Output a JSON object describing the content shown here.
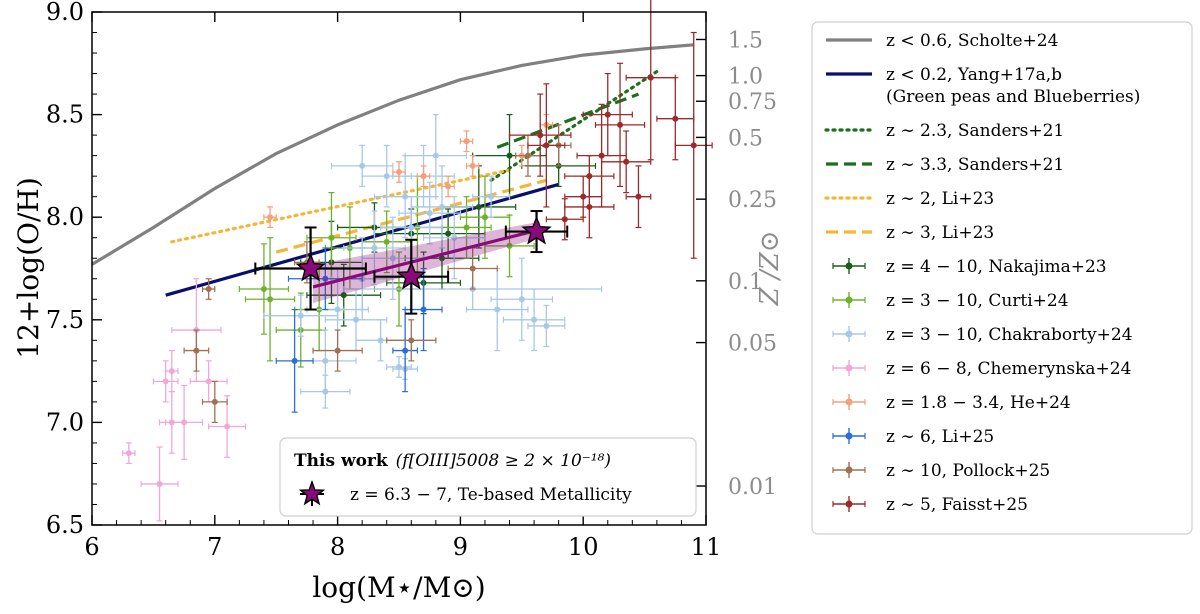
{
  "chart_data": {
    "type": "scatter",
    "xlabel": "log(M⋆/M⊙)",
    "ylabel": "12+log(O/H)",
    "y2label": "Z /Z⊙",
    "xlim": [
      6,
      11
    ],
    "ylim": [
      6.5,
      9.0
    ],
    "x_ticks": [
      "6",
      "7",
      "8",
      "9",
      "10",
      "11"
    ],
    "y_ticks": [
      "6.5",
      "7.0",
      "7.5",
      "8.0",
      "8.5",
      "9.0"
    ],
    "z_ticks": [
      {
        "label": "1.5",
        "value": 1.5
      },
      {
        "label": "1.0",
        "value": 1.0
      },
      {
        "label": "0.75",
        "value": 0.75
      },
      {
        "label": "0.5",
        "value": 0.5
      },
      {
        "label": "0.25",
        "value": 0.25
      },
      {
        "label": "0.1",
        "value": 0.1
      },
      {
        "label": "0.05",
        "value": 0.05
      },
      {
        "label": "0.01",
        "value": 0.01
      }
    ],
    "solar_oh": 8.69,
    "relations": [
      {
        "name": "z < 0.6, Scholte+24",
        "color": "#808080",
        "dash": "",
        "x": [
          6.0,
          6.5,
          7.0,
          7.5,
          8.0,
          8.5,
          9.0,
          9.5,
          10.0,
          10.5,
          10.9
        ],
        "y": [
          7.77,
          7.95,
          8.14,
          8.31,
          8.45,
          8.57,
          8.67,
          8.74,
          8.79,
          8.82,
          8.84
        ]
      },
      {
        "name": "z < 0.2, Yang+17a,b",
        "name2": "(Green peas and Blueberries)",
        "color": "#0a0f6e",
        "dash": "",
        "x": [
          6.6,
          9.8
        ],
        "y": [
          7.62,
          8.16
        ]
      },
      {
        "name": "z ∼ 2.3, Sanders+21",
        "color": "#1f6e1f",
        "dash": "dot",
        "x": [
          9.25,
          10.6
        ],
        "y": [
          8.18,
          8.71
        ]
      },
      {
        "name": "z ∼ 3.3, Sanders+21",
        "color": "#1f6e1f",
        "dash": "dash",
        "x": [
          9.3,
          10.45
        ],
        "y": [
          8.34,
          8.6
        ]
      },
      {
        "name": "z ∼ 2, Li+23",
        "color": "#f5b638",
        "dash": "dot",
        "x": [
          6.65,
          9.4
        ],
        "y": [
          7.88,
          8.23
        ]
      },
      {
        "name": "z ∼ 3, Li+23",
        "color": "#f5b638",
        "dash": "dash",
        "x": [
          7.5,
          9.7
        ],
        "y": [
          7.83,
          8.18
        ]
      }
    ],
    "series": [
      {
        "name": "z = 4 − 10, Nakajima+23",
        "color": "#1a5c1a",
        "points": [
          [
            8.3,
            7.95,
            0.3,
            0.12
          ],
          [
            8.6,
            7.92,
            0.3,
            0.12
          ],
          [
            8.9,
            7.92,
            0.3,
            0.12
          ],
          [
            9.15,
            8.05,
            0.3,
            0.2
          ],
          [
            9.4,
            8.3,
            0.3,
            0.2
          ],
          [
            8.85,
            7.8,
            0.3,
            0.15
          ],
          [
            7.95,
            7.78,
            0.25,
            0.2
          ],
          [
            8.7,
            7.68,
            0.3,
            0.15
          ],
          [
            9.8,
            8.25,
            0.3,
            0.1
          ],
          [
            8.05,
            7.62,
            0.3,
            0.15
          ]
        ]
      },
      {
        "name": "z = 3 − 10, Curti+24",
        "color": "#6fb02c",
        "points": [
          [
            7.4,
            7.65,
            0.2,
            0.22
          ],
          [
            7.45,
            7.6,
            0.2,
            0.3
          ],
          [
            7.85,
            7.55,
            0.2,
            0.2
          ],
          [
            8.1,
            7.85,
            0.2,
            0.2
          ],
          [
            8.2,
            7.7,
            0.2,
            0.15
          ],
          [
            7.7,
            7.45,
            0.2,
            0.18
          ],
          [
            8.4,
            7.88,
            0.2,
            0.15
          ],
          [
            8.5,
            7.65,
            0.2,
            0.18
          ],
          [
            9.05,
            7.95,
            0.2,
            0.15
          ],
          [
            9.2,
            8.0,
            0.2,
            0.2
          ],
          [
            9.4,
            7.86,
            0.2,
            0.15
          ],
          [
            8.65,
            7.95,
            0.2,
            0.25
          ],
          [
            7.95,
            7.9,
            0.2,
            0.22
          ]
        ]
      },
      {
        "name": "z = 3 − 10, Chakraborty+24",
        "color": "#a8c8e8",
        "points": [
          [
            7.9,
            7.3,
            0.25,
            0.15
          ],
          [
            8.0,
            7.55,
            0.25,
            0.2
          ],
          [
            8.15,
            7.5,
            0.25,
            0.15
          ],
          [
            8.2,
            7.7,
            0.25,
            0.2
          ],
          [
            8.3,
            7.85,
            0.25,
            0.18
          ],
          [
            8.45,
            7.8,
            0.25,
            0.2
          ],
          [
            8.55,
            8.1,
            0.25,
            0.2
          ],
          [
            8.6,
            7.95,
            0.25,
            0.15
          ],
          [
            8.7,
            8.2,
            0.25,
            0.15
          ],
          [
            8.8,
            8.3,
            0.25,
            0.2
          ],
          [
            8.85,
            8.05,
            0.25,
            0.2
          ],
          [
            8.95,
            7.9,
            0.25,
            0.2
          ],
          [
            8.5,
            7.27,
            0.1,
            0.05
          ],
          [
            8.55,
            7.26,
            0.1,
            0.05
          ],
          [
            9.3,
            7.55,
            0.25,
            0.2
          ],
          [
            9.5,
            7.6,
            0.25,
            0.2
          ],
          [
            9.6,
            7.5,
            0.25,
            0.15
          ],
          [
            9.7,
            7.47,
            0.15,
            0.1
          ],
          [
            9.1,
            7.65,
            1.05,
            0.1
          ],
          [
            7.7,
            7.52,
            0.3,
            0.1
          ],
          [
            7.9,
            7.15,
            0.2,
            0.08
          ],
          [
            8.4,
            8.2,
            0.2,
            0.15
          ],
          [
            8.2,
            8.25,
            0.25,
            0.1
          ],
          [
            8.35,
            7.4,
            0.2,
            0.1
          ],
          [
            8.75,
            8.02,
            0.25,
            0.15
          ],
          [
            9.25,
            8.1,
            0.15,
            0.1
          ]
        ]
      },
      {
        "name": "z = 6 − 8, Chemerynska+24",
        "color": "#f0a8d8",
        "points": [
          [
            6.3,
            6.85,
            0.05,
            0.05
          ],
          [
            6.55,
            6.7,
            0.15,
            0.18
          ],
          [
            6.6,
            7.2,
            0.1,
            0.1
          ],
          [
            6.65,
            7.0,
            0.1,
            0.15
          ],
          [
            6.75,
            7.0,
            0.15,
            0.18
          ],
          [
            6.85,
            7.45,
            0.2,
            0.25
          ],
          [
            6.95,
            7.2,
            0.15,
            0.1
          ],
          [
            7.1,
            6.98,
            0.15,
            0.15
          ],
          [
            6.65,
            7.25,
            0.05,
            0.1
          ]
        ]
      },
      {
        "name": "z = 1.8 − 3.4, He+24",
        "color": "#f4a07a",
        "points": [
          [
            7.45,
            8.0,
            0.05,
            0.05
          ],
          [
            9.1,
            8.25,
            0.05,
            0.05
          ],
          [
            8.9,
            8.15,
            0.05,
            0.05
          ],
          [
            9.05,
            8.37,
            0.05,
            0.05
          ],
          [
            8.7,
            8.2,
            0.05,
            0.05
          ],
          [
            9.7,
            8.45,
            0.05,
            0.05
          ],
          [
            8.5,
            8.22,
            0.05,
            0.05
          ],
          [
            9.5,
            8.3,
            0.05,
            0.05
          ]
        ]
      },
      {
        "name": "z ∼ 6, Li+25",
        "color": "#2a6fd6",
        "points": [
          [
            7.9,
            7.7,
            0.3,
            0.15
          ],
          [
            7.65,
            7.3,
            0.15,
            0.25
          ],
          [
            8.55,
            7.35,
            0.1,
            0.2
          ],
          [
            8.7,
            7.55,
            0.15,
            0.2
          ]
        ]
      },
      {
        "name": "z ∼ 10, Pollock+25",
        "color": "#a07050",
        "points": [
          [
            6.85,
            7.35,
            0.1,
            0.1
          ],
          [
            7.0,
            7.1,
            0.1,
            0.1
          ],
          [
            6.95,
            7.65,
            0.05,
            0.05
          ],
          [
            8.0,
            7.35,
            0.2,
            0.1
          ],
          [
            8.6,
            7.4,
            0.2,
            0.1
          ],
          [
            9.1,
            7.75,
            0.2,
            0.1
          ],
          [
            9.55,
            8.3,
            0.1,
            0.1
          ],
          [
            9.8,
            8.35,
            0.1,
            0.1
          ],
          [
            7.75,
            7.78,
            0.1,
            0.1
          ]
        ]
      },
      {
        "name": "z ∼ 5, Faisst+25",
        "color": "#9c2a2a",
        "points": [
          [
            10.55,
            8.68,
            0.2,
            0.4
          ],
          [
            10.75,
            8.48,
            0.15,
            0.2
          ],
          [
            10.9,
            8.35,
            0.15,
            0.55
          ],
          [
            10.3,
            8.45,
            0.2,
            0.3
          ],
          [
            10.2,
            8.5,
            0.2,
            0.2
          ],
          [
            10.15,
            8.3,
            0.2,
            0.25
          ],
          [
            10.35,
            8.27,
            0.2,
            0.15
          ],
          [
            10.45,
            8.1,
            0.1,
            0.15
          ],
          [
            10.05,
            8.2,
            0.2,
            0.1
          ],
          [
            10.0,
            8.1,
            0.15,
            0.1
          ],
          [
            10.05,
            8.05,
            0.2,
            0.15
          ],
          [
            9.85,
            7.99,
            0.15,
            0.1
          ],
          [
            9.65,
            8.4,
            0.25,
            0.2
          ],
          [
            9.7,
            8.35,
            0.15,
            0.3
          ]
        ]
      }
    ],
    "this_work": {
      "name": "z = 6.3 − 7, Te-based Metallicity",
      "color": "#8b0a7a",
      "points": [
        [
          7.78,
          7.75,
          0.45,
          0.2
        ],
        [
          8.6,
          7.71,
          0.3,
          0.18
        ],
        [
          9.62,
          7.93,
          0.25,
          0.1
        ]
      ],
      "fit_x": [
        7.8,
        9.65
      ],
      "fit_y": [
        7.66,
        7.94
      ]
    },
    "inset_title_bold": "This work",
    "inset_title_rest": "(f[OIII]5008 ≥ 2 × 10⁻¹⁸)"
  }
}
